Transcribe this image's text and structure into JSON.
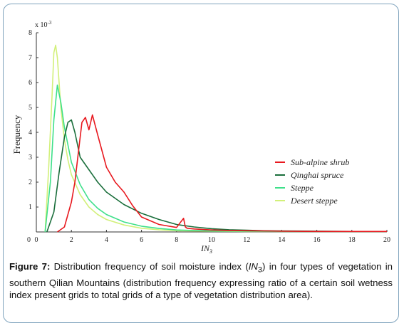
{
  "chart_data": {
    "type": "line",
    "xlabel": "IN",
    "xlabel_sub": "3",
    "ylabel": "Frequency",
    "y_exponent_base": "x 10",
    "y_exponent_power": "-3",
    "xlim": [
      0,
      20
    ],
    "ylim": [
      0,
      8
    ],
    "x_ticks": [
      "0",
      "2",
      "4",
      "6",
      "8",
      "10",
      "12",
      "14",
      "16",
      "18",
      "20"
    ],
    "y_ticks": [
      "1",
      "2",
      "3",
      "4",
      "5",
      "6",
      "7",
      "8"
    ],
    "legend_position": "right",
    "series": [
      {
        "name": "Sub-alpine shrub",
        "color": "#e8191f",
        "x": [
          1.2,
          1.6,
          2.0,
          2.2,
          2.4,
          2.6,
          2.8,
          3.0,
          3.2,
          3.5,
          4.0,
          4.5,
          5.0,
          5.5,
          6.0,
          7.0,
          8.0,
          8.4,
          8.5,
          8.6,
          9.0,
          10.0,
          11.0,
          12.0,
          13.0,
          14.0,
          16.0,
          18.0,
          20.0
        ],
        "y": [
          0.0,
          0.2,
          1.2,
          2.0,
          3.2,
          4.4,
          4.6,
          4.1,
          4.7,
          3.9,
          2.6,
          2.0,
          1.6,
          1.05,
          0.6,
          0.3,
          0.18,
          0.55,
          0.2,
          0.15,
          0.12,
          0.08,
          0.06,
          0.05,
          0.04,
          0.03,
          0.02,
          0.02,
          0.02
        ]
      },
      {
        "name": "Qinghai spruce",
        "color": "#1a6e3b",
        "x": [
          0.6,
          1.0,
          1.3,
          1.6,
          1.8,
          2.0,
          2.2,
          2.5,
          3.0,
          3.5,
          4.0,
          5.0,
          6.0,
          7.0,
          8.0,
          9.0,
          10.0,
          11.0,
          12.0,
          13.0,
          14.0,
          16.0,
          18.0,
          20.0
        ],
        "y": [
          0.0,
          0.8,
          2.4,
          3.8,
          4.4,
          4.5,
          4.0,
          3.0,
          2.5,
          2.0,
          1.6,
          1.1,
          0.75,
          0.5,
          0.3,
          0.2,
          0.13,
          0.09,
          0.07,
          0.05,
          0.04,
          0.03,
          0.02,
          0.02
        ]
      },
      {
        "name": "Steppe",
        "color": "#3fe08a",
        "x": [
          0.5,
          0.8,
          1.0,
          1.2,
          1.4,
          1.6,
          1.8,
          2.0,
          2.5,
          3.0,
          3.5,
          4.0,
          5.0,
          6.0,
          7.0,
          8.0,
          10.0,
          12.0,
          14.0,
          16.0,
          18.0,
          20.0
        ],
        "y": [
          0.0,
          2.0,
          4.5,
          5.9,
          5.2,
          4.2,
          3.5,
          2.8,
          1.9,
          1.3,
          0.95,
          0.7,
          0.4,
          0.23,
          0.14,
          0.08,
          0.04,
          0.03,
          0.02,
          0.02,
          0.02,
          0.02
        ]
      },
      {
        "name": "Desert steppe",
        "color": "#d2f07a",
        "x": [
          0.5,
          0.7,
          0.9,
          1.0,
          1.1,
          1.2,
          1.4,
          1.6,
          1.8,
          2.0,
          2.5,
          3.0,
          3.5,
          4.0,
          5.0,
          6.0,
          7.0,
          8.0,
          10.0,
          12.0,
          16.0,
          20.0
        ],
        "y": [
          0.0,
          2.5,
          5.5,
          7.2,
          7.5,
          7.0,
          5.0,
          3.7,
          2.9,
          2.3,
          1.5,
          1.0,
          0.7,
          0.5,
          0.28,
          0.15,
          0.09,
          0.05,
          0.03,
          0.02,
          0.02,
          0.02
        ]
      }
    ]
  },
  "caption": {
    "label": "Figure 7:",
    "text_before_sub": " Distribution frequency of soil moisture index (",
    "term": "IN",
    "term_sub": "3",
    "text_after_sub": ") in four types of vegetation in southern Qilian Mountains (distribution frequency expressing ratio of a certain soil wetness index present grids to total grids of a type of vegetation distribution area)."
  }
}
